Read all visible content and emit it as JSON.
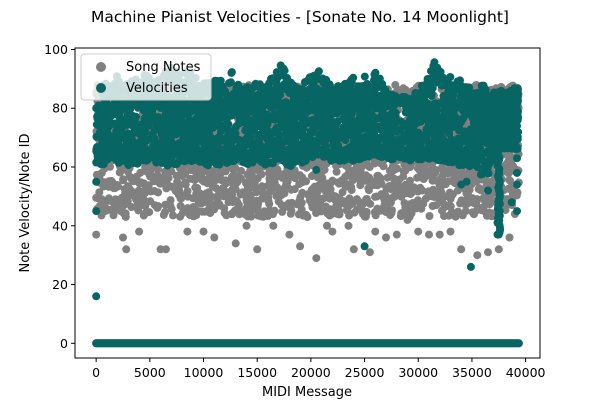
{
  "chart_data": {
    "type": "scatter",
    "title": "Machine Pianist Velocities - [Sonate No. 14 Moonlight]",
    "xlabel": "MIDI Message",
    "ylabel": "Note Velocity/Note ID",
    "xlim": [
      -1970,
      41340
    ],
    "ylim": [
      -5,
      100.5
    ],
    "xticks": [
      0,
      5000,
      10000,
      15000,
      20000,
      25000,
      30000,
      35000,
      40000
    ],
    "yticks": [
      0,
      20,
      40,
      60,
      80,
      100
    ],
    "legend": {
      "position": "upper-left"
    },
    "series": [
      {
        "name": "Song Notes",
        "color": "#808080",
        "bands": [
          {
            "from": 0,
            "to": 39370,
            "ymin": 0,
            "ymax": 0
          },
          {
            "from": 0,
            "to": 39370,
            "ymin": 43,
            "ymax": 70
          },
          {
            "from": 0,
            "to": 39370,
            "ymin": 62,
            "ymax": 88
          }
        ],
        "points": [
          {
            "x": 0,
            "y": 37
          },
          {
            "x": 2500,
            "y": 36
          },
          {
            "x": 2800,
            "y": 32
          },
          {
            "x": 4000,
            "y": 38
          },
          {
            "x": 6000,
            "y": 32
          },
          {
            "x": 6500,
            "y": 32
          },
          {
            "x": 8500,
            "y": 38
          },
          {
            "x": 10000,
            "y": 38
          },
          {
            "x": 11000,
            "y": 36
          },
          {
            "x": 13000,
            "y": 34
          },
          {
            "x": 15000,
            "y": 32
          },
          {
            "x": 18000,
            "y": 37
          },
          {
            "x": 19000,
            "y": 33
          },
          {
            "x": 20500,
            "y": 29
          },
          {
            "x": 22000,
            "y": 38
          },
          {
            "x": 24000,
            "y": 32
          },
          {
            "x": 25500,
            "y": 31
          },
          {
            "x": 26000,
            "y": 38
          },
          {
            "x": 27000,
            "y": 36
          },
          {
            "x": 28000,
            "y": 37
          },
          {
            "x": 30000,
            "y": 38
          },
          {
            "x": 31000,
            "y": 37
          },
          {
            "x": 32000,
            "y": 37
          },
          {
            "x": 33000,
            "y": 38
          },
          {
            "x": 34000,
            "y": 32
          },
          {
            "x": 35500,
            "y": 30
          },
          {
            "x": 36500,
            "y": 31
          },
          {
            "x": 37500,
            "y": 32
          },
          {
            "x": 38500,
            "y": 36
          },
          {
            "x": 39000,
            "y": 44
          },
          {
            "x": 14000,
            "y": 40
          },
          {
            "x": 16500,
            "y": 40
          },
          {
            "x": 21500,
            "y": 40
          },
          {
            "x": 23500,
            "y": 40
          },
          {
            "x": 29000,
            "y": 42
          }
        ]
      },
      {
        "name": "Velocities",
        "color": "#076663",
        "bands": [
          {
            "from": 0,
            "to": 39370,
            "ymin": 0,
            "ymax": 0
          },
          {
            "from": 0,
            "to": 37000,
            "ymin": 64,
            "ymax": 82
          }
        ],
        "peaks": [
          {
            "x": 0,
            "y": 62
          },
          {
            "x": 500,
            "y": 84
          },
          {
            "x": 1000,
            "y": 90
          },
          {
            "x": 1800,
            "y": 92
          },
          {
            "x": 2500,
            "y": 88
          },
          {
            "x": 3500,
            "y": 90
          },
          {
            "x": 4500,
            "y": 92
          },
          {
            "x": 5500,
            "y": 89
          },
          {
            "x": 6500,
            "y": 93
          },
          {
            "x": 7300,
            "y": 97
          },
          {
            "x": 8000,
            "y": 91
          },
          {
            "x": 8800,
            "y": 95
          },
          {
            "x": 9500,
            "y": 88
          },
          {
            "x": 10500,
            "y": 89
          },
          {
            "x": 11200,
            "y": 92
          },
          {
            "x": 12000,
            "y": 87
          },
          {
            "x": 12600,
            "y": 93
          },
          {
            "x": 13500,
            "y": 86
          },
          {
            "x": 14500,
            "y": 89
          },
          {
            "x": 15500,
            "y": 88
          },
          {
            "x": 16500,
            "y": 91
          },
          {
            "x": 17200,
            "y": 96
          },
          {
            "x": 18000,
            "y": 90
          },
          {
            "x": 19000,
            "y": 87
          },
          {
            "x": 20200,
            "y": 94
          },
          {
            "x": 21000,
            "y": 92
          },
          {
            "x": 22000,
            "y": 87
          },
          {
            "x": 23000,
            "y": 88
          },
          {
            "x": 24000,
            "y": 91
          },
          {
            "x": 25000,
            "y": 92
          },
          {
            "x": 26000,
            "y": 93
          },
          {
            "x": 27000,
            "y": 86
          },
          {
            "x": 28000,
            "y": 84
          },
          {
            "x": 29000,
            "y": 84
          },
          {
            "x": 30000,
            "y": 86
          },
          {
            "x": 31000,
            "y": 92
          },
          {
            "x": 31500,
            "y": 96
          },
          {
            "x": 32500,
            "y": 90
          },
          {
            "x": 33500,
            "y": 92
          },
          {
            "x": 34500,
            "y": 88
          },
          {
            "x": 35500,
            "y": 85
          },
          {
            "x": 36000,
            "y": 89
          },
          {
            "x": 36800,
            "y": 82
          },
          {
            "x": 37800,
            "y": 83
          },
          {
            "x": 38500,
            "y": 86
          },
          {
            "x": 39300,
            "y": 89
          }
        ],
        "troughs": [
          {
            "x": 0,
            "y": 60
          },
          {
            "x": 1500,
            "y": 62
          },
          {
            "x": 3000,
            "y": 60
          },
          {
            "x": 5000,
            "y": 62
          },
          {
            "x": 7000,
            "y": 60
          },
          {
            "x": 9000,
            "y": 62
          },
          {
            "x": 11000,
            "y": 60
          },
          {
            "x": 13000,
            "y": 62
          },
          {
            "x": 15000,
            "y": 60
          },
          {
            "x": 16500,
            "y": 61
          },
          {
            "x": 18500,
            "y": 60
          },
          {
            "x": 20500,
            "y": 64
          },
          {
            "x": 22000,
            "y": 62
          },
          {
            "x": 24000,
            "y": 62
          },
          {
            "x": 26000,
            "y": 64
          },
          {
            "x": 28000,
            "y": 62
          },
          {
            "x": 30000,
            "y": 62
          },
          {
            "x": 32000,
            "y": 62
          },
          {
            "x": 34000,
            "y": 60
          },
          {
            "x": 35500,
            "y": 58
          },
          {
            "x": 36500,
            "y": 56
          },
          {
            "x": 37000,
            "y": 64
          }
        ],
        "column": {
          "x": 37500,
          "ymin": 37,
          "ymax": 82
        },
        "points": [
          {
            "x": 0,
            "y": 16
          },
          {
            "x": 0,
            "y": 45
          },
          {
            "x": 0,
            "y": 55
          },
          {
            "x": 20500,
            "y": 59
          },
          {
            "x": 25000,
            "y": 33
          },
          {
            "x": 34000,
            "y": 54
          },
          {
            "x": 34500,
            "y": 55
          },
          {
            "x": 34900,
            "y": 26
          },
          {
            "x": 36500,
            "y": 52
          },
          {
            "x": 37500,
            "y": 37
          },
          {
            "x": 38700,
            "y": 48
          },
          {
            "x": 39200,
            "y": 45
          },
          {
            "x": 39200,
            "y": 54
          },
          {
            "x": 39200,
            "y": 58
          },
          {
            "x": 39200,
            "y": 63
          },
          {
            "x": 39200,
            "y": 74
          }
        ]
      }
    ]
  }
}
